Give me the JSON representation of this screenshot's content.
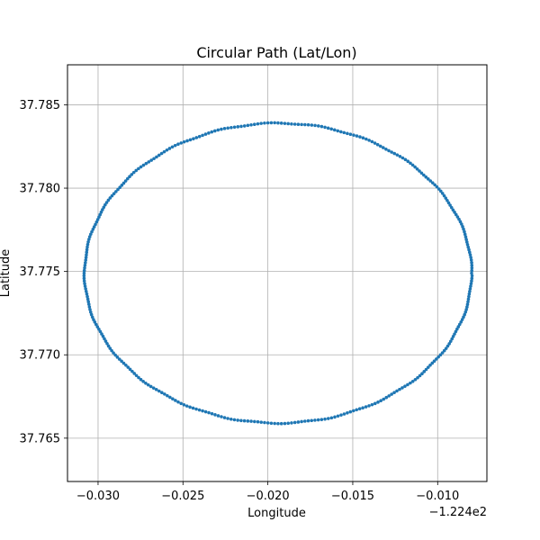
{
  "chart_data": {
    "type": "scatter",
    "title": "Circular Path (Lat/Lon)",
    "xlabel": "Longitude",
    "ylabel": "Latitude",
    "x_offset_label": "−1.224e2",
    "xlim": [
      -0.0318,
      -0.0071
    ],
    "ylim": [
      37.7624,
      37.7874
    ],
    "xticks": [
      -0.03,
      -0.025,
      -0.02,
      -0.015,
      -0.01
    ],
    "xtick_labels": [
      "−0.030",
      "−0.025",
      "−0.020",
      "−0.015",
      "−0.010"
    ],
    "yticks": [
      37.765,
      37.77,
      37.775,
      37.78,
      37.785
    ],
    "ytick_labels": [
      "37.765",
      "37.770",
      "37.775",
      "37.780",
      "37.785"
    ],
    "grid": true,
    "series": [
      {
        "color": "#1f77b4",
        "center": [
          -0.0194,
          37.7749
        ],
        "radius_lon": 0.0114,
        "radius_lat": 0.009,
        "num_points": 360
      }
    ]
  }
}
